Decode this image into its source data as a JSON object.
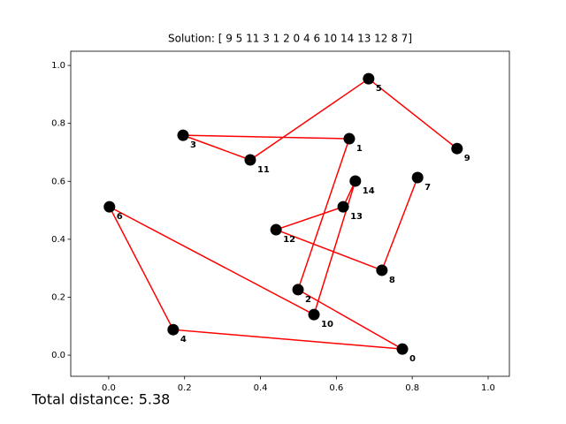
{
  "chart_data": {
    "type": "scatter",
    "title": "Solution: [ 9  5 11  3  1  2  0  4  6 10 14 13 12  8  7]",
    "annotation": "Total distance: 5.38",
    "point_labels": [
      "0",
      "1",
      "2",
      "3",
      "4",
      "5",
      "6",
      "7",
      "8",
      "9",
      "10",
      "11",
      "12",
      "13",
      "14"
    ],
    "x": [
      0.774,
      0.634,
      0.499,
      0.196,
      0.17,
      0.685,
      0.002,
      0.814,
      0.72,
      0.918,
      0.541,
      0.373,
      0.441,
      0.618,
      0.65
    ],
    "y": [
      0.021,
      0.747,
      0.226,
      0.759,
      0.088,
      0.954,
      0.512,
      0.613,
      0.293,
      0.713,
      0.14,
      0.674,
      0.433,
      0.512,
      0.601
    ],
    "route": [
      9,
      5,
      11,
      3,
      1,
      2,
      0,
      4,
      6,
      10,
      14,
      13,
      12,
      8,
      7
    ],
    "point_color": "#000000",
    "route_color": "#ff0000",
    "annotation_color": "#ff0000",
    "xlim": [
      -0.1,
      1.056
    ],
    "ylim": [
      -0.073,
      1.049
    ],
    "xticks": [
      {
        "value": 0,
        "label": "0.0"
      },
      {
        "value": 0.2,
        "label": "0.2"
      },
      {
        "value": 0.4,
        "label": "0.4"
      },
      {
        "value": 0.6,
        "label": "0.6"
      },
      {
        "value": 0.8,
        "label": "0.8"
      },
      {
        "value": 1,
        "label": "1.0"
      }
    ],
    "yticks": [
      {
        "value": 0,
        "label": "0.0"
      },
      {
        "value": 0.2,
        "label": "0.2"
      },
      {
        "value": 0.4,
        "label": "0.4"
      },
      {
        "value": 0.6,
        "label": "0.6"
      },
      {
        "value": 0.8,
        "label": "0.8"
      },
      {
        "value": 1,
        "label": "1.0"
      }
    ],
    "grid": false
  }
}
